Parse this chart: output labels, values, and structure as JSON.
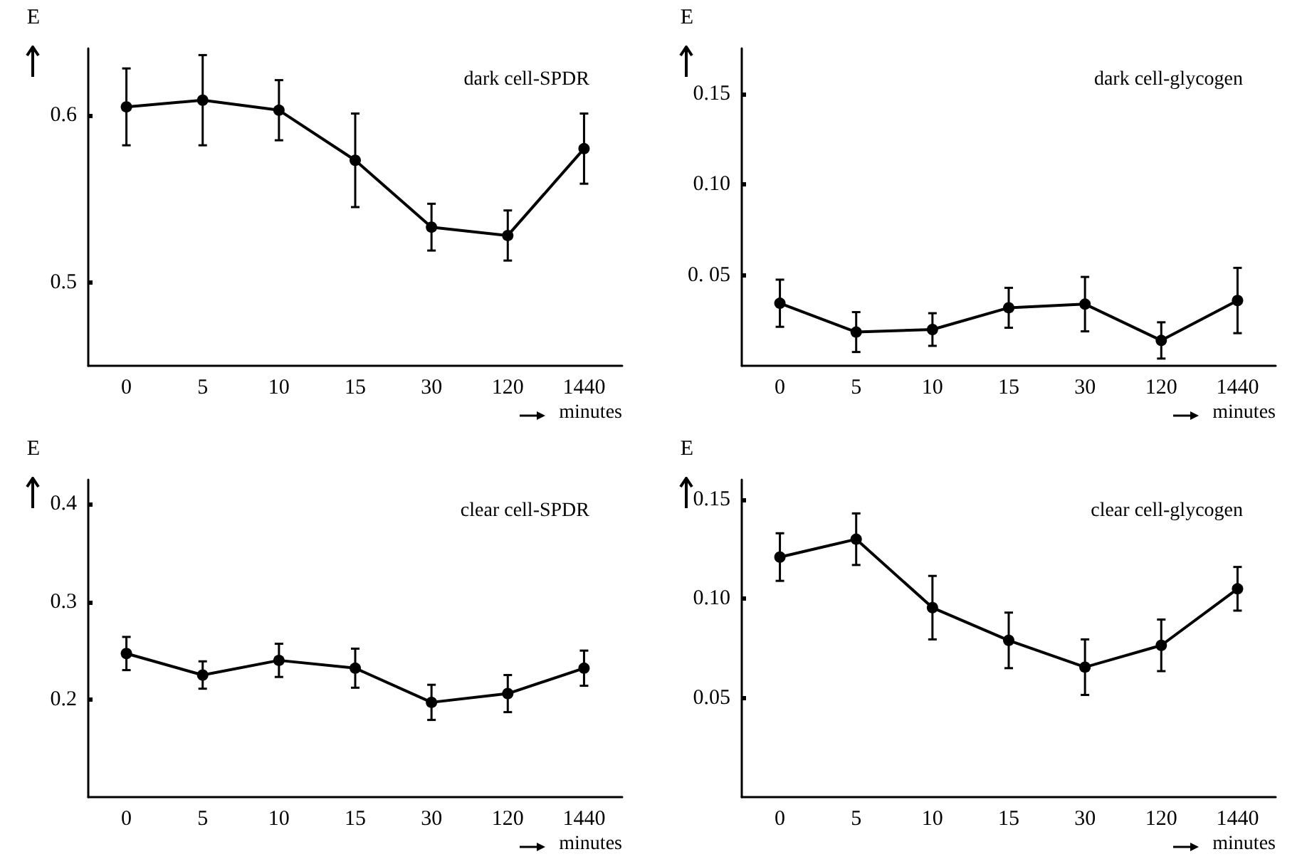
{
  "chart_data": [
    {
      "type": "line",
      "title": "dark cell-SPDR",
      "xlabel": "minutes",
      "ylabel": "E",
      "categories": [
        "0",
        "5",
        "10",
        "15",
        "30",
        "120",
        "1440"
      ],
      "ylim": [
        0.45,
        0.64
      ],
      "yticks": [
        0.5,
        0.6
      ],
      "marker": "circle",
      "series": [
        {
          "color": "#000000",
          "values": [
            0.605,
            0.609,
            0.603,
            0.573,
            0.533,
            0.528,
            0.58
          ],
          "errors": [
            0.023,
            0.027,
            0.018,
            0.028,
            0.014,
            0.015,
            0.021
          ]
        }
      ]
    },
    {
      "type": "line",
      "title": "dark cell-glycogen",
      "xlabel": "minutes",
      "ylabel": "E",
      "categories": [
        "0",
        "5",
        "10",
        "15",
        "30",
        "120",
        "1440"
      ],
      "ylim": [
        0,
        0.175
      ],
      "yticks": [
        {
          "value": 0.05,
          "label": "0. 05"
        },
        {
          "value": 0.1,
          "label": "0.10"
        },
        {
          "value": 0.15,
          "label": "0.15"
        }
      ],
      "marker": "circle",
      "series": [
        {
          "color": "#000000",
          "values": [
            0.0345,
            0.0186,
            0.02,
            0.032,
            0.034,
            0.014,
            0.036
          ],
          "errors": [
            0.013,
            0.011,
            0.009,
            0.011,
            0.015,
            0.01,
            0.018
          ]
        }
      ]
    },
    {
      "type": "line",
      "title": "clear cell-SPDR",
      "xlabel": "minutes",
      "ylabel": "E",
      "categories": [
        "0",
        "5",
        "10",
        "15",
        "30",
        "120",
        "1440"
      ],
      "ylim": [
        0.1,
        0.425
      ],
      "yticks": [
        0.2,
        0.3,
        0.4
      ],
      "marker": "circle",
      "series": [
        {
          "color": "#000000",
          "values": [
            0.247,
            0.225,
            0.24,
            0.232,
            0.197,
            0.206,
            0.232
          ],
          "errors": [
            0.017,
            0.014,
            0.017,
            0.02,
            0.018,
            0.019,
            0.018
          ]
        }
      ]
    },
    {
      "type": "line",
      "title": "clear cell-glycogen",
      "xlabel": "minutes",
      "ylabel": "E",
      "categories": [
        "0",
        "5",
        "10",
        "15",
        "30",
        "120",
        "1440"
      ],
      "ylim": [
        0,
        0.16
      ],
      "yticks": [
        {
          "value": 0.05,
          "label": "0.05"
        },
        {
          "value": 0.1,
          "label": "0.10"
        },
        {
          "value": 0.15,
          "label": "0.15"
        }
      ],
      "marker": "circle",
      "series": [
        {
          "color": "#000000",
          "values": [
            0.121,
            0.13,
            0.0955,
            0.079,
            0.0655,
            0.0765,
            0.105
          ],
          "errors": [
            0.012,
            0.013,
            0.016,
            0.014,
            0.014,
            0.013,
            0.011
          ]
        }
      ]
    }
  ]
}
